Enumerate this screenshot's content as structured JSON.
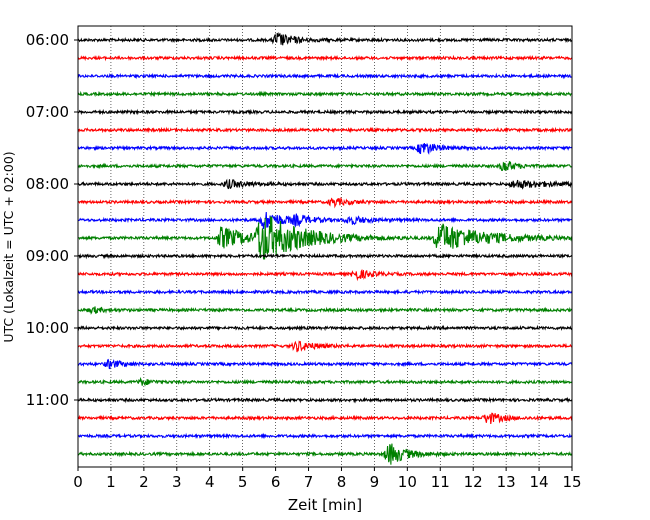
{
  "chart_data": {
    "type": "line",
    "title": "",
    "xlabel": "Zeit  [min]",
    "ylabel": "UTC (Lokalzeit = UTC + 02:00)",
    "xlim": [
      0,
      15
    ],
    "x_ticks": [
      0,
      1,
      2,
      3,
      4,
      5,
      6,
      7,
      8,
      9,
      10,
      11,
      12,
      13,
      14,
      15
    ],
    "x_tick_labels": [
      "0",
      "1",
      "2",
      "3",
      "4",
      "5",
      "6",
      "7",
      "8",
      "9",
      "10",
      "11",
      "12",
      "13",
      "14",
      "15"
    ],
    "y_tick_labels": [
      "06:00",
      "07:00",
      "08:00",
      "09:00",
      "10:00",
      "11:00"
    ],
    "trace_minutes": 15,
    "grid_vertical": true,
    "color_cycle": [
      "#000000",
      "#ff0000",
      "#0000ff",
      "#008000"
    ],
    "traces": [
      {
        "start": "06:00",
        "events": [
          {
            "t": 5.9,
            "a": 7,
            "d": 0.5
          }
        ]
      },
      {
        "start": "06:15",
        "events": []
      },
      {
        "start": "06:30",
        "events": []
      },
      {
        "start": "06:45",
        "events": []
      },
      {
        "start": "07:00",
        "events": []
      },
      {
        "start": "07:15",
        "events": []
      },
      {
        "start": "07:30",
        "events": [
          {
            "t": 10.3,
            "a": 7,
            "d": 0.4
          }
        ]
      },
      {
        "start": "07:45",
        "events": [
          {
            "t": 12.8,
            "a": 6,
            "d": 0.3
          }
        ]
      },
      {
        "start": "08:00",
        "events": [
          {
            "t": 4.4,
            "a": 4,
            "d": 0.6
          },
          {
            "t": 13.1,
            "a": 4,
            "d": 1.0
          }
        ]
      },
      {
        "start": "08:15",
        "events": [
          {
            "t": 7.6,
            "a": 4,
            "d": 0.4
          }
        ]
      },
      {
        "start": "08:30",
        "events": [
          {
            "t": 5.5,
            "a": 9,
            "d": 0.6
          },
          {
            "t": 6.5,
            "a": 4,
            "d": 0.4
          },
          {
            "t": 8.1,
            "a": 4,
            "d": 0.5
          }
        ]
      },
      {
        "start": "08:45",
        "events": [
          {
            "t": 4.2,
            "a": 11,
            "d": 0.8
          },
          {
            "t": 5.4,
            "a": 24,
            "d": 1.2
          },
          {
            "t": 10.8,
            "a": 15,
            "d": 1.3
          }
        ]
      },
      {
        "start": "09:00",
        "events": []
      },
      {
        "start": "09:15",
        "events": [
          {
            "t": 8.3,
            "a": 5,
            "d": 0.4
          }
        ]
      },
      {
        "start": "09:30",
        "events": []
      },
      {
        "start": "09:45",
        "events": [
          {
            "t": 0.3,
            "a": 3,
            "d": 0.3
          }
        ]
      },
      {
        "start": "10:00",
        "events": []
      },
      {
        "start": "10:15",
        "events": [
          {
            "t": 6.5,
            "a": 5,
            "d": 0.5
          }
        ]
      },
      {
        "start": "10:30",
        "events": [
          {
            "t": 0.8,
            "a": 4,
            "d": 0.4
          }
        ]
      },
      {
        "start": "10:45",
        "events": [
          {
            "t": 1.8,
            "a": 3,
            "d": 0.3
          }
        ]
      },
      {
        "start": "11:00",
        "events": []
      },
      {
        "start": "11:15",
        "events": [
          {
            "t": 12.3,
            "a": 6,
            "d": 0.4
          }
        ]
      },
      {
        "start": "11:30",
        "events": []
      },
      {
        "start": "11:45",
        "events": [
          {
            "t": 9.3,
            "a": 11,
            "d": 0.5
          }
        ]
      }
    ]
  }
}
